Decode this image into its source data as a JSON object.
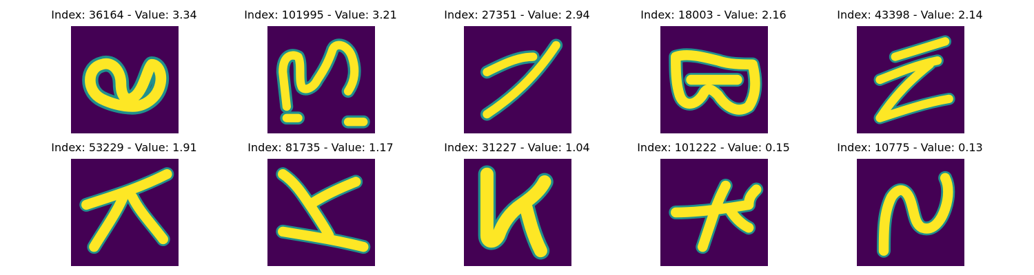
{
  "figure": {
    "colormap": "viridis",
    "background": "#440154",
    "stroke": "#fde725",
    "images": [
      {
        "title": "Index: 36164 - Value: 3.34",
        "index": 36164,
        "value": 3.34,
        "icon": "handwritten-glyph-loop"
      },
      {
        "title": "Index: 101995 - Value: 3.21",
        "index": 101995,
        "value": 3.21,
        "icon": "handwritten-glyph-n"
      },
      {
        "title": "Index: 27351 - Value: 2.94",
        "index": 27351,
        "value": 2.94,
        "icon": "handwritten-glyph-slash"
      },
      {
        "title": "Index: 18003 - Value: 2.16",
        "index": 18003,
        "value": 2.16,
        "icon": "handwritten-glyph-bow"
      },
      {
        "title": "Index: 43398 - Value: 2.14",
        "index": 43398,
        "value": 2.14,
        "icon": "handwritten-glyph-z"
      },
      {
        "title": "Index: 53229 - Value: 1.91",
        "index": 53229,
        "value": 1.91,
        "icon": "handwritten-glyph-star"
      },
      {
        "title": "Index: 81735 - Value: 1.17",
        "index": 81735,
        "value": 1.17,
        "icon": "handwritten-glyph-z2"
      },
      {
        "title": "Index: 31227 - Value: 1.04",
        "index": 31227,
        "value": 1.04,
        "icon": "handwritten-glyph-h"
      },
      {
        "title": "Index: 101222 - Value: 0.15",
        "index": 101222,
        "value": 0.15,
        "icon": "handwritten-glyph-plus"
      },
      {
        "title": "Index: 10775 - Value: 0.13",
        "index": 10775,
        "value": 0.13,
        "icon": "handwritten-glyph-n2"
      }
    ]
  }
}
